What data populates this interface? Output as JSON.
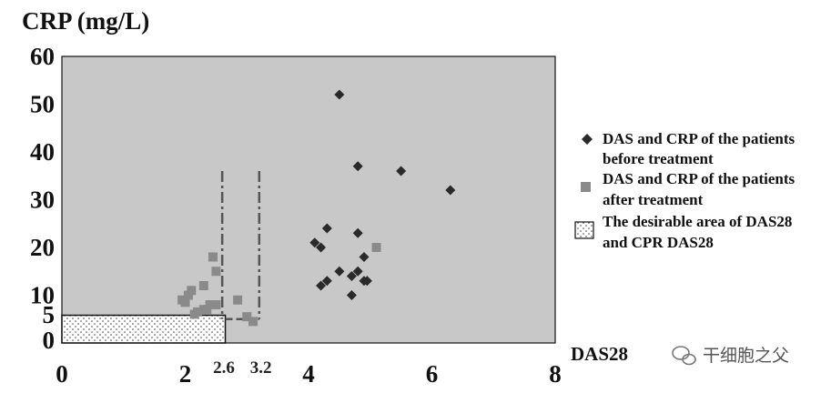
{
  "chart_data": {
    "type": "scatter",
    "title": "CRP (mg/L)",
    "xlabel": "DAS28",
    "xlim": [
      0,
      8
    ],
    "ylim": [
      0,
      60
    ],
    "x_ticks": [
      "0",
      "2",
      "4",
      "6",
      "8"
    ],
    "y_ticks": [
      "0",
      "5",
      "10",
      "20",
      "30",
      "40",
      "50",
      "60"
    ],
    "reference_lines": [
      {
        "x": 2.6,
        "label": "2.6"
      },
      {
        "x": 3.2,
        "label": "3.2"
      }
    ],
    "desirable_area": {
      "x": [
        0,
        2.65
      ],
      "y": [
        0,
        5.8
      ]
    },
    "legend_position": "right",
    "series": [
      {
        "name": "DAS and CRP of the patients before treatment",
        "marker": "diamond",
        "color": "#2a2a2a",
        "points": [
          [
            4.5,
            52
          ],
          [
            4.8,
            37
          ],
          [
            5.5,
            36
          ],
          [
            6.3,
            32
          ],
          [
            4.1,
            21
          ],
          [
            4.3,
            24
          ],
          [
            4.2,
            20
          ],
          [
            4.8,
            23
          ],
          [
            4.9,
            18
          ],
          [
            4.2,
            12
          ],
          [
            4.3,
            13
          ],
          [
            4.5,
            15
          ],
          [
            4.7,
            14
          ],
          [
            4.8,
            15
          ],
          [
            4.9,
            13
          ],
          [
            4.95,
            13
          ],
          [
            4.7,
            10
          ]
        ]
      },
      {
        "name": "DAS and CRP of the patients after treatment",
        "marker": "square",
        "color": "#8a8a8a",
        "points": [
          [
            2.45,
            18
          ],
          [
            2.5,
            15
          ],
          [
            2.1,
            11
          ],
          [
            2.05,
            10
          ],
          [
            1.95,
            9
          ],
          [
            2.3,
            12
          ],
          [
            2.4,
            8
          ],
          [
            2.5,
            8
          ],
          [
            2.35,
            7
          ],
          [
            2.2,
            6.5
          ],
          [
            2.3,
            7
          ],
          [
            3.0,
            5.5
          ],
          [
            3.1,
            4.5
          ],
          [
            2.85,
            9
          ],
          [
            5.1,
            20
          ],
          [
            2.15,
            6
          ],
          [
            2.0,
            8.5
          ]
        ]
      }
    ],
    "legend": [
      {
        "marker": "diamond",
        "line1": "DAS and CRP of the patients",
        "line2": "before treatment"
      },
      {
        "marker": "square",
        "line1": "DAS and CRP of the patients",
        "line2": "after treatment"
      },
      {
        "marker": "dotted-box",
        "line1": "The desirable area of DAS28",
        "line2": "and CPR DAS28"
      }
    ]
  },
  "watermark": {
    "text": "干细胞之父"
  },
  "colors": {
    "plot_background": "#c8c8c8",
    "diamond": "#2a2a2a",
    "square": "#8a8a8a"
  }
}
